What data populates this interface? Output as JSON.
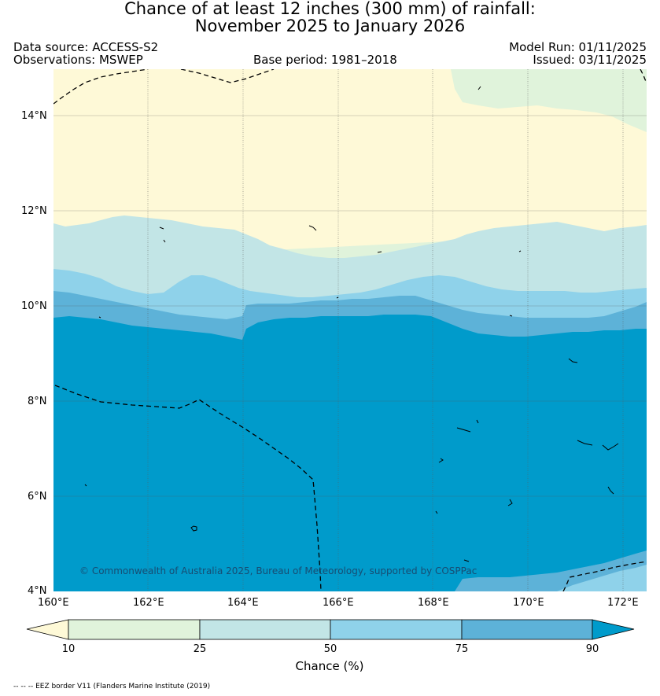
{
  "title": {
    "line1": "Chance of at least 12 inches (300  mm) of rainfall:",
    "line2": "November 2025 to January 2026"
  },
  "meta": {
    "data_source": "Data source: ACCESS-S2",
    "observations": "Observations: MSWEP",
    "base_period": "Base period: 1981–2018",
    "model_run": "Model Run: 01/11/2025",
    "issued": "Issued: 03/11/2025"
  },
  "map": {
    "lon_range": [
      160,
      172.5
    ],
    "lat_range": [
      4,
      15
    ],
    "y_ticks": [
      "14°N",
      "12°N",
      "10°N",
      "8°N",
      "6°N",
      "4°N"
    ],
    "x_ticks": [
      "160°E",
      "162°E",
      "164°E",
      "166°E",
      "168°E",
      "170°E",
      "172°E"
    ],
    "copyright": "© Commonwealth of Australia 2025, Bureau of Meteorology, supported by COSPPac",
    "bands": [
      {
        "range": "<10%",
        "color": "#fef9d7"
      },
      {
        "range": "10–25%",
        "color": "#e0f3db"
      },
      {
        "range": "25–50%",
        "color": "#c2e5e6"
      },
      {
        "range": "50–75%",
        "color": "#8fd2ea"
      },
      {
        "range": "75–90%",
        "color": "#5db2d8"
      },
      {
        "range": ">90%",
        "color": "#009bcb"
      }
    ]
  },
  "colorbar": {
    "labels": [
      "10",
      "25",
      "50",
      "75",
      "90"
    ],
    "title": "Chance (%)"
  },
  "footnote": "-- -- -- EEZ border V11 (Flanders Marine Institute (2019)"
}
